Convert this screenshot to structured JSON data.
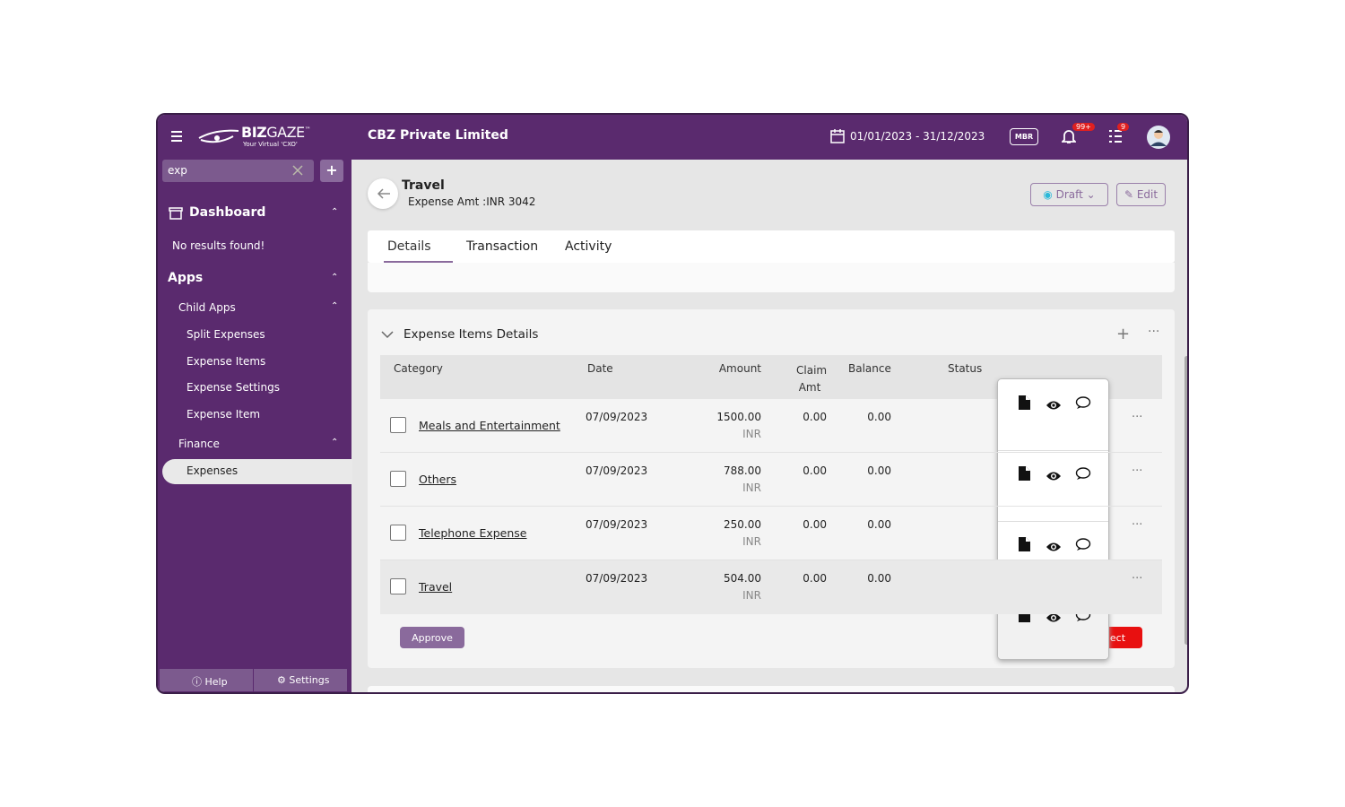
{
  "header": {
    "brand_bold": "BIZ",
    "brand_light": "GAZE",
    "trademark": "™",
    "tagline": "Your Virtual 'CXO'",
    "company": "CBZ Private Limited",
    "date_range": "01/01/2023 - 31/12/2023",
    "mbr": "MBR",
    "notification_badge": "99+",
    "task_badge": "9"
  },
  "sidebar": {
    "search": "exp",
    "dashboard": "Dashboard",
    "no_results": "No results found!",
    "apps": "Apps",
    "child_apps": "Child Apps",
    "child_items": [
      "Split Expenses",
      "Expense Items",
      "Expense Settings",
      "Expense Item"
    ],
    "finance": "Finance",
    "finance_items": [
      "Expenses"
    ],
    "help": "Help",
    "settings": "Settings"
  },
  "record": {
    "title": "Travel",
    "subtitle": "Expense Amt :INR 3042",
    "status": "Draft",
    "edit": "Edit"
  },
  "tabs": [
    "Details",
    "Transaction",
    "Activity"
  ],
  "section": {
    "title": "Expense Items Details"
  },
  "table": {
    "columns": [
      "Category",
      "Date",
      "Amount",
      "Claim Amt",
      "Balance",
      "Status"
    ],
    "rows": [
      [
        "Meals and Entertainment",
        "07/09/2023",
        "1500.00",
        "INR",
        "0.00",
        "0.00"
      ],
      [
        "Others",
        "07/09/2023",
        "788.00",
        "INR",
        "0.00",
        "0.00"
      ],
      [
        "Telephone Expense",
        "07/09/2023",
        "250.00",
        "INR",
        "0.00",
        "0.00"
      ],
      [
        "Travel",
        "07/09/2023",
        "504.00",
        "INR",
        "0.00",
        "0.00"
      ]
    ]
  },
  "buttons": {
    "approve": "Approve",
    "reject": "Reject"
  }
}
